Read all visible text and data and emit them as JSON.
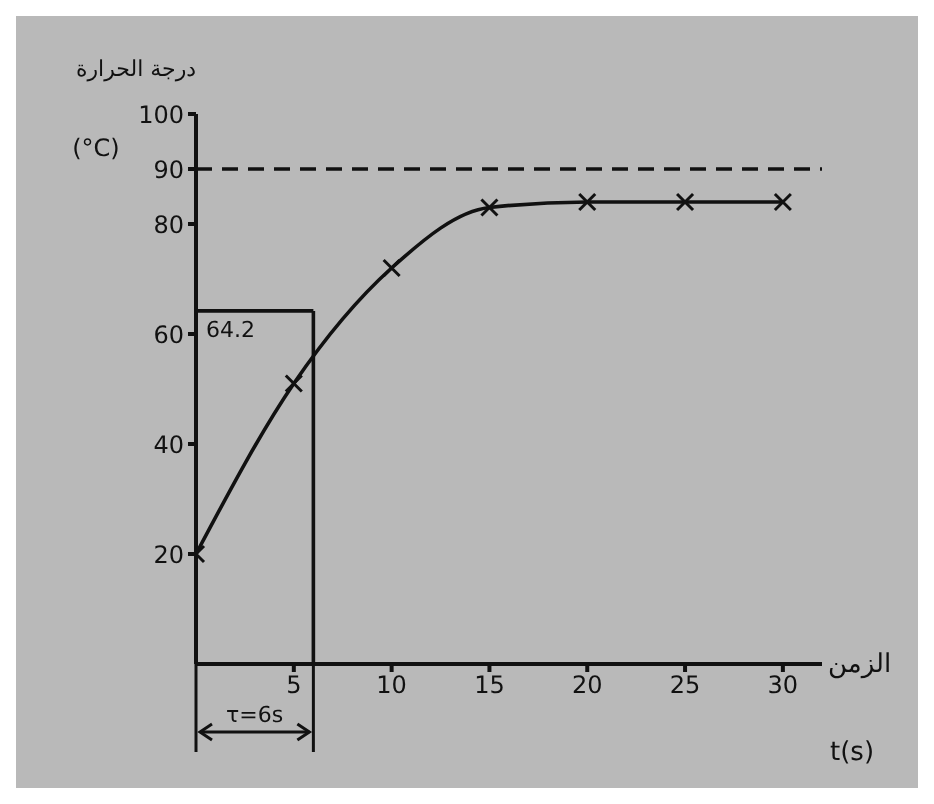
{
  "chart_data": {
    "type": "line",
    "xlabel": "الزمن t(s)",
    "ylabel": "درجة الحرارة (°C)",
    "x": [
      0,
      5,
      10,
      15,
      20,
      25,
      30
    ],
    "series": [
      {
        "color": "#111111",
        "values": [
          20,
          51,
          72,
          83,
          84,
          84,
          84
        ]
      }
    ],
    "xlim": [
      0,
      32
    ],
    "xticks": [
      5,
      10,
      15,
      20,
      25,
      30
    ],
    "ylim": [
      0,
      100
    ],
    "yticks": [
      20,
      40,
      60,
      80,
      90,
      100
    ],
    "marker": "cross",
    "line_style": "solid",
    "ref_lines": [
      {
        "axis": "y",
        "value": 90,
        "line_style": "dashed",
        "color": "#111111"
      },
      {
        "axis": "y",
        "value": 64.2,
        "label": "64.2",
        "color": "#111111"
      },
      {
        "axis": "x",
        "value": 6,
        "label": "τ=6s",
        "color": "#111111"
      }
    ]
  }
}
